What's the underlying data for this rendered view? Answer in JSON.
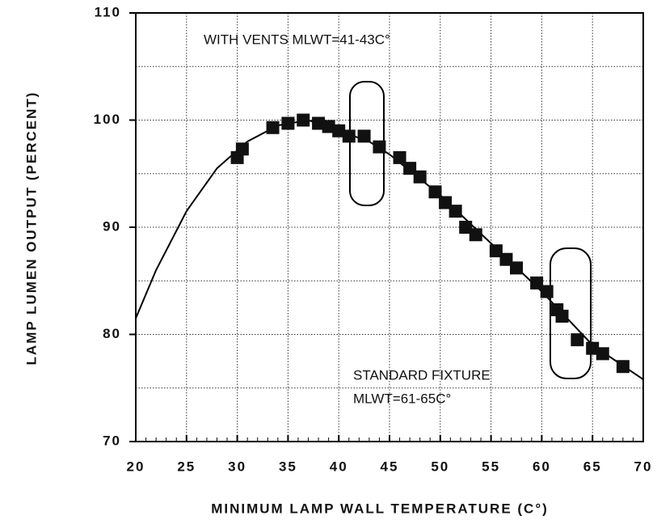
{
  "chart_data": {
    "type": "scatter",
    "xlabel": "MINIMUM LAMP WALL TEMPERATURE (C°)",
    "ylabel": "LAMP LUMEN OUTPUT (PERCENT)",
    "annotations": [
      "WITH VENTS MLWT=41-43C°",
      "STANDARD FIXTURE",
      "MLWT=61-65C°"
    ],
    "xlim": [
      20,
      70
    ],
    "xticks": [
      20,
      25,
      30,
      35,
      40,
      45,
      50,
      55,
      60,
      65,
      70
    ],
    "ylim": [
      70,
      110
    ],
    "yticks": [
      70,
      80,
      90,
      100,
      110
    ],
    "yminor": [
      75,
      85,
      95,
      105
    ],
    "grid": true,
    "series": [
      {
        "style": "line",
        "color": "#000000",
        "x": [
          20,
          22,
          25,
          28,
          31,
          34,
          37,
          40,
          43,
          45,
          50,
          55,
          60,
          65,
          70
        ],
        "values": [
          81.5,
          86,
          91.5,
          95.5,
          98,
          99.5,
          100,
          99,
          98,
          96.8,
          93,
          88.5,
          84,
          79,
          75.8
        ]
      },
      {
        "style": "markers",
        "color": "#111111",
        "x": [
          30,
          30.5,
          33.5,
          35,
          36.5,
          38,
          39,
          40,
          41,
          42.5,
          44,
          46,
          47,
          48,
          49.5,
          50.5,
          51.5,
          52.5,
          53.5,
          55.5,
          56.5,
          57.5,
          59.5,
          60.5,
          61.5,
          62,
          63.5,
          65,
          66,
          68
        ],
        "values": [
          96.5,
          97.3,
          99.3,
          99.7,
          100,
          99.7,
          99.4,
          99,
          98.5,
          98.5,
          97.5,
          96.5,
          95.5,
          94.7,
          93.3,
          92.3,
          91.5,
          90,
          89.3,
          87.8,
          87,
          86.2,
          84.8,
          84,
          82.3,
          81.7,
          79.5,
          78.7,
          78.2,
          77
        ]
      }
    ]
  }
}
